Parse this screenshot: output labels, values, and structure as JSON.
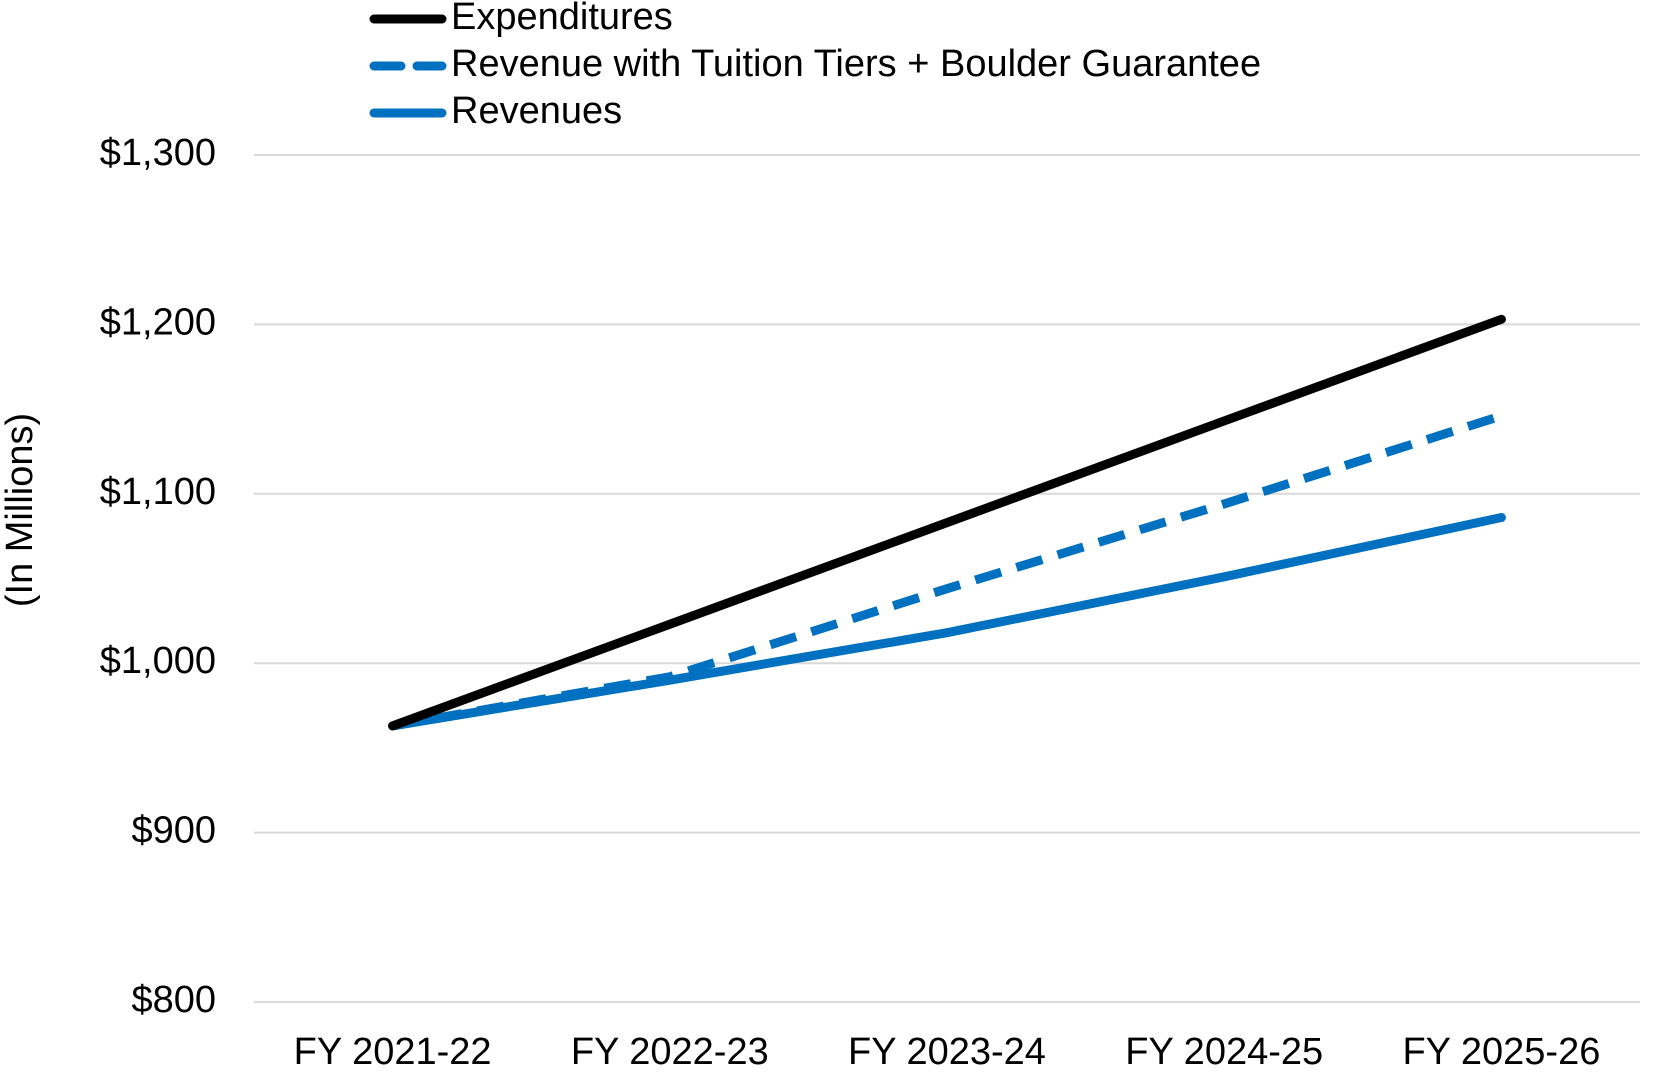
{
  "chart_data": {
    "type": "line",
    "ylabel": "(In Millions)",
    "categories": [
      "FY 2021-22",
      "FY 2022-23",
      "FY 2023-24",
      "FY 2024-25",
      "FY 2025-26"
    ],
    "series": [
      {
        "name": "Expenditures",
        "color": "#000000",
        "dashed": false,
        "values": [
          963,
          1023,
          1083,
          1143,
          1203
        ]
      },
      {
        "name": "Revenue with Tuition Tiers + Boulder Guarantee",
        "color": "#0070c0",
        "dashed": true,
        "values": [
          963,
          992,
          1044,
          1094,
          1146
        ]
      },
      {
        "name": "Revenues",
        "color": "#0070c0",
        "dashed": false,
        "values": [
          963,
          990,
          1018,
          1051,
          1086
        ]
      }
    ],
    "ylim": [
      800,
      1300
    ],
    "yticks": [
      {
        "value": 800,
        "label": "$800"
      },
      {
        "value": 900,
        "label": "$900"
      },
      {
        "value": 1000,
        "label": "$1,000"
      },
      {
        "value": 1100,
        "label": "$1,100"
      },
      {
        "value": 1200,
        "label": "$1,200"
      },
      {
        "value": 1300,
        "label": "$1,300"
      }
    ],
    "grid": true,
    "legend": "top"
  }
}
